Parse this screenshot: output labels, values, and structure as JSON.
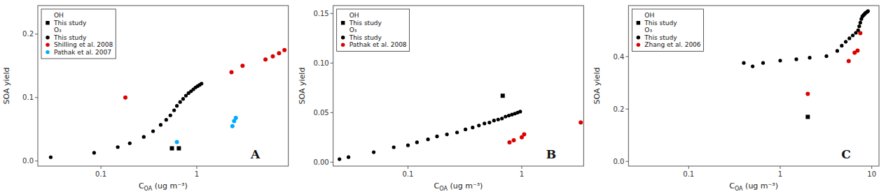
{
  "chart_data": [
    {
      "type": "scatter",
      "log": "x",
      "annotation": "A",
      "xlabel": "COA (ug m⁻³)",
      "ylabel": "SOA yield",
      "xlim": [
        0.022,
        9.0
      ],
      "ylim": [
        -0.008,
        0.245
      ],
      "xticks": [
        0.1,
        1
      ],
      "yticks": [
        {
          "value": 0.0,
          "label": "0.0"
        },
        0.1,
        0.2
      ],
      "legend": "upper left",
      "series": [
        {
          "name": "This study",
          "group": "OH",
          "color": "black",
          "marker": "square",
          "x": [
            0.55,
            0.65
          ],
          "values": [
            0.02,
            0.02
          ]
        },
        {
          "name": "This study",
          "group": "O₃",
          "color": "black",
          "marker": "circle",
          "x": [
            0.03,
            0.085,
            0.15,
            0.2,
            0.28,
            0.35,
            0.42,
            0.48,
            0.53,
            0.58,
            0.62,
            0.67,
            0.72,
            0.77,
            0.82,
            0.87,
            0.92,
            0.97,
            1.02,
            1.07,
            1.12
          ],
          "values": [
            0.006,
            0.013,
            0.022,
            0.028,
            0.038,
            0.047,
            0.057,
            0.065,
            0.072,
            0.08,
            0.087,
            0.093,
            0.098,
            0.103,
            0.107,
            0.11,
            0.113,
            0.116,
            0.118,
            0.12,
            0.122
          ]
        },
        {
          "name": "Shilling et al. 2008",
          "group": "O₃",
          "color": "#dd0000",
          "marker": "circle",
          "x": [
            0.18,
            2.3,
            3.0,
            5.2,
            6.2,
            7.2,
            8.2
          ],
          "values": [
            0.1,
            0.14,
            0.15,
            0.16,
            0.165,
            0.17,
            0.175
          ]
        },
        {
          "name": "Pathak et al. 2007",
          "group": "O₃",
          "color": "#00aaff",
          "marker": "circle",
          "x": [
            0.62,
            2.35,
            2.45,
            2.55
          ],
          "values": [
            0.03,
            0.055,
            0.063,
            0.068
          ]
        }
      ]
    },
    {
      "type": "scatter",
      "log": "x",
      "annotation": "B",
      "xlabel": "COA (ug m⁻³)",
      "ylabel": "SOA yield",
      "xlim": [
        0.022,
        3.5
      ],
      "ylim": [
        -0.004,
        0.158
      ],
      "xticks": [
        0.1,
        1
      ],
      "yticks": [
        {
          "value": 0.0,
          "label": "0.00"
        },
        0.05,
        {
          "value": 0.1,
          "label": "0.10"
        },
        0.15
      ],
      "legend": "upper left",
      "series": [
        {
          "name": "This study",
          "group": "OH",
          "color": "black",
          "marker": "square",
          "x": [
            0.68
          ],
          "values": [
            0.067
          ]
        },
        {
          "name": "This study",
          "group": "O₃",
          "color": "black",
          "marker": "circle",
          "x": [
            0.025,
            0.03,
            0.05,
            0.075,
            0.1,
            0.12,
            0.15,
            0.18,
            0.22,
            0.27,
            0.32,
            0.37,
            0.42,
            0.47,
            0.52,
            0.57,
            0.62,
            0.67,
            0.72,
            0.77,
            0.82,
            0.87,
            0.92,
            0.97
          ],
          "values": [
            0.003,
            0.005,
            0.01,
            0.015,
            0.017,
            0.02,
            0.023,
            0.026,
            0.028,
            0.03,
            0.033,
            0.035,
            0.037,
            0.039,
            0.04,
            0.042,
            0.043,
            0.044,
            0.046,
            0.047,
            0.048,
            0.049,
            0.05,
            0.051
          ]
        },
        {
          "name": "Pathak et al. 2008",
          "group": "O₃",
          "color": "#dd0000",
          "marker": "circle",
          "x": [
            0.78,
            0.85,
            1.0,
            1.05,
            3.3
          ],
          "values": [
            0.02,
            0.022,
            0.025,
            0.028,
            0.04
          ]
        }
      ]
    },
    {
      "type": "scatter",
      "log": "x",
      "annotation": "C",
      "xlabel": "COA (ug m⁻³)",
      "ylabel": "SOA yield",
      "xlim": [
        0.022,
        12.0
      ],
      "ylim": [
        -0.018,
        0.595
      ],
      "xticks": [
        0.1,
        1,
        10
      ],
      "yticks": [
        {
          "value": 0.0,
          "label": "0.0"
        },
        0.2,
        0.4
      ],
      "legend": "upper left",
      "series": [
        {
          "name": "This study",
          "group": "OH",
          "color": "black",
          "marker": "square",
          "x": [
            2.0
          ],
          "values": [
            0.17
          ]
        },
        {
          "name": "This study",
          "group": "O₃",
          "color": "black",
          "marker": "circle",
          "x": [
            0.4,
            0.5,
            0.65,
            1.0,
            1.5,
            2.1,
            3.2,
            4.2,
            4.7,
            5.2,
            5.7,
            6.2,
            6.7,
            7.1,
            7.3,
            7.5,
            7.7,
            7.9,
            8.1,
            8.3,
            8.5,
            8.7,
            8.9,
            9.1
          ],
          "values": [
            0.376,
            0.363,
            0.376,
            0.385,
            0.39,
            0.396,
            0.402,
            0.422,
            0.442,
            0.457,
            0.47,
            0.481,
            0.491,
            0.501,
            0.516,
            0.53,
            0.544,
            0.554,
            0.558,
            0.562,
            0.566,
            0.569,
            0.571,
            0.574
          ]
        },
        {
          "name": "Zhang et al. 2006",
          "group": "O₃",
          "color": "#dd0000",
          "marker": "circle",
          "x": [
            2.0,
            5.6,
            6.5,
            7.0,
            7.5
          ],
          "values": [
            0.258,
            0.383,
            0.415,
            0.423,
            0.49
          ]
        }
      ]
    }
  ]
}
